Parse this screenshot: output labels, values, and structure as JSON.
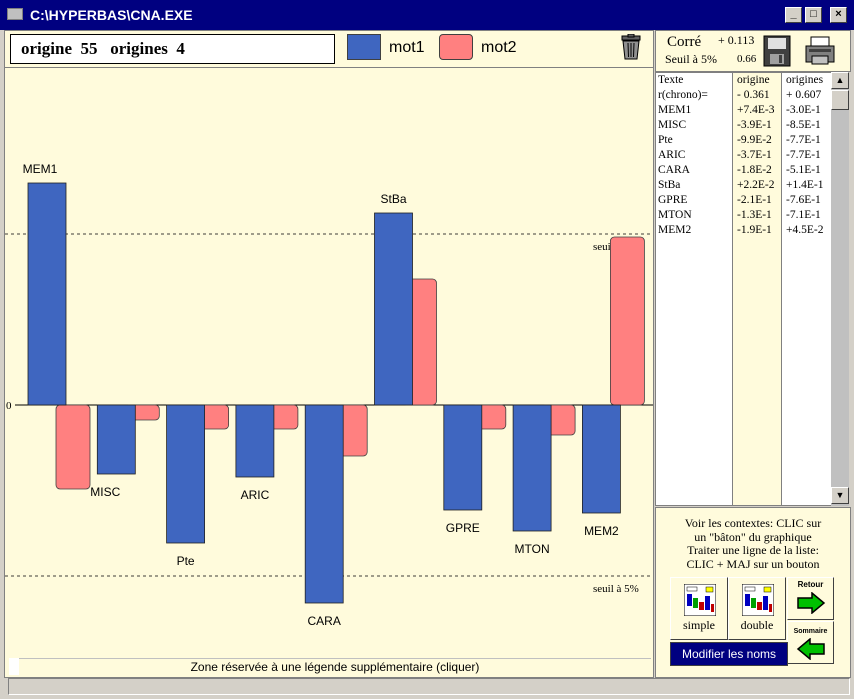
{
  "window": {
    "title": "C:\\HYPERBAS\\CNA.EXE",
    "minimize_glyph": "_",
    "maximize_glyph": "□",
    "close_glyph": "×"
  },
  "header": {
    "origin_text": "origine  55   origines  4",
    "legend": [
      {
        "label": "mot1",
        "color": "#3f66c0"
      },
      {
        "label": "mot2",
        "color": "#ff8080"
      }
    ],
    "trash_icon": "trash-icon"
  },
  "chart_data": {
    "type": "bar",
    "categories": [
      "MEM1",
      "MISC",
      "Pte",
      "ARIC",
      "CARA",
      "StBa",
      "GPRE",
      "MTON",
      "MEM2"
    ],
    "series": [
      {
        "name": "mot1",
        "color": "#3f66c0",
        "values": [
          7.4,
          -2.3,
          -4.6,
          -2.4,
          -6.6,
          6.4,
          -3.5,
          -4.2,
          -3.6
        ]
      },
      {
        "name": "mot2",
        "color": "#ff8080",
        "values": [
          -2.8,
          -0.5,
          -0.8,
          -0.8,
          -1.7,
          4.2,
          -0.8,
          -1.0,
          5.6
        ]
      }
    ],
    "zero_label": "0",
    "threshold_label": "seuil à 5%",
    "threshold": 5.7,
    "ylim": [
      -8,
      11.5
    ]
  },
  "legend_zone": {
    "text": "Zone réservée à une légende supplémentaire (cliquer)"
  },
  "correlation": {
    "label": "Corré",
    "value": "+ 0.113",
    "seuil_label": "Seuil à 5%",
    "seuil_value": "0.66"
  },
  "table": {
    "headers": [
      "Texte",
      "origine",
      "origines"
    ],
    "rows": [
      [
        "r(chrono)=",
        "- 0.361",
        "+ 0.607"
      ],
      [
        " MEM1",
        "+7.4E-3",
        "-3.0E-1"
      ],
      [
        " MISC",
        "-3.9E-1",
        "-8.5E-1"
      ],
      [
        " Pte",
        "-9.9E-2",
        "-7.7E-1"
      ],
      [
        " ARIC",
        "-3.7E-1",
        "-7.7E-1"
      ],
      [
        " CARA",
        "-1.8E-2",
        "-5.1E-1"
      ],
      [
        " StBa",
        "+2.2E-2",
        "+1.4E-1"
      ],
      [
        " GPRE",
        "-2.1E-1",
        "-7.6E-1"
      ],
      [
        " MTON",
        "-1.3E-1",
        "-7.1E-1"
      ],
      [
        " MEM2",
        "-1.9E-1",
        "+4.5E-2"
      ]
    ]
  },
  "help": {
    "lines": [
      "Voir les contextes: CLIC sur",
      "un \"bâton\" du graphique",
      "Traiter une ligne de la liste:",
      "CLIC + MAJ sur un bouton"
    ],
    "simple_label": "simple",
    "double_label": "double",
    "retour_label": "Retour",
    "sommaire_label": "Sommaire",
    "modify_label": "Modifier les noms"
  }
}
